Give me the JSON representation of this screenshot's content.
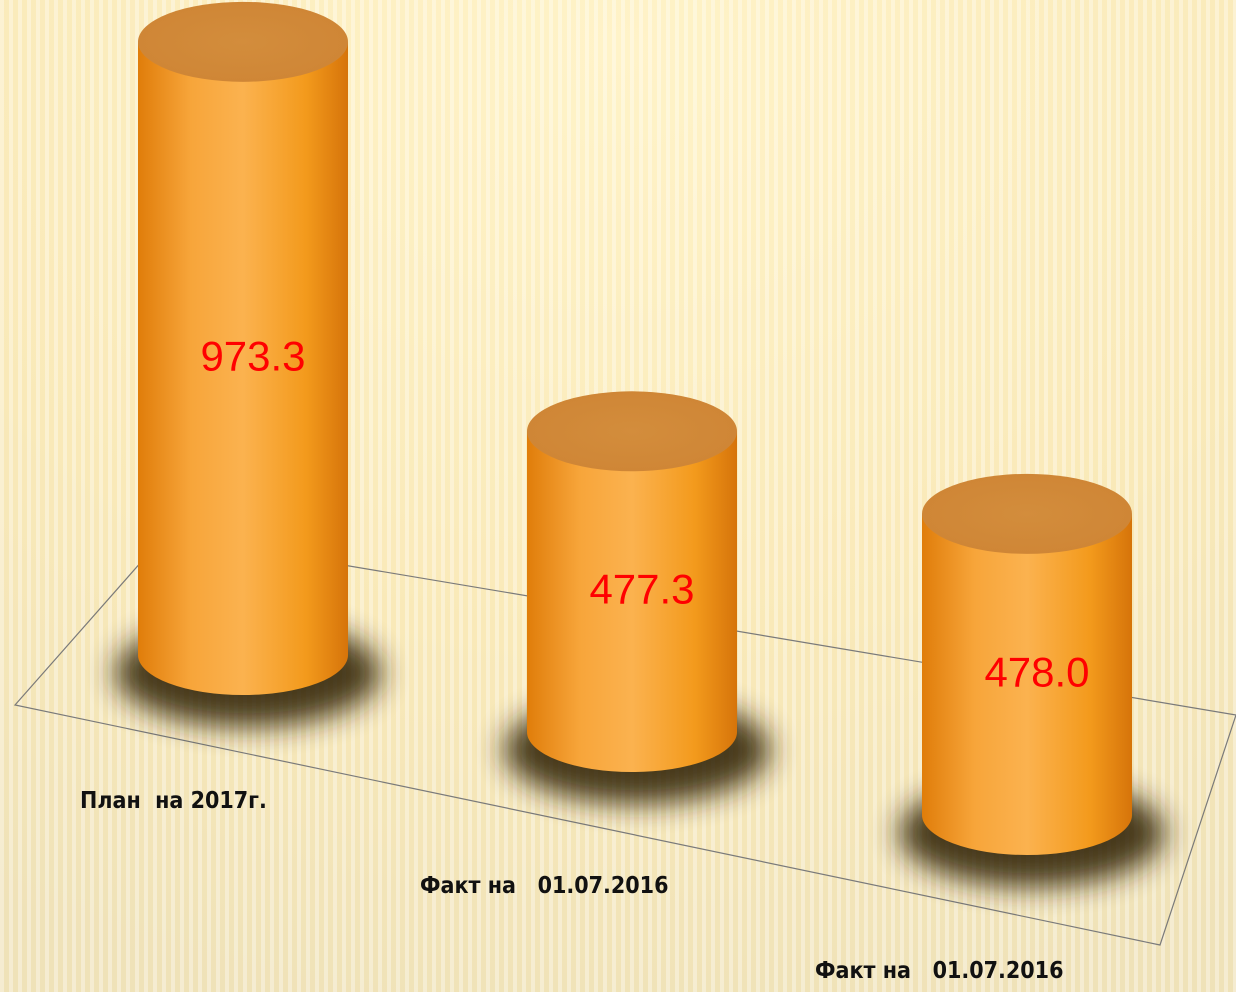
{
  "chart_data": {
    "type": "cylinder",
    "categories": [
      "План  на 2017г.",
      "Факт на   01.07.2016",
      "Факт на   01.07.2016"
    ],
    "values": [
      973.3,
      477.3,
      478.0
    ],
    "value_labels": [
      "973.3",
      "477.3",
      "478.0"
    ],
    "color": "#f39a1c",
    "value_label_color": "#ff0000"
  }
}
